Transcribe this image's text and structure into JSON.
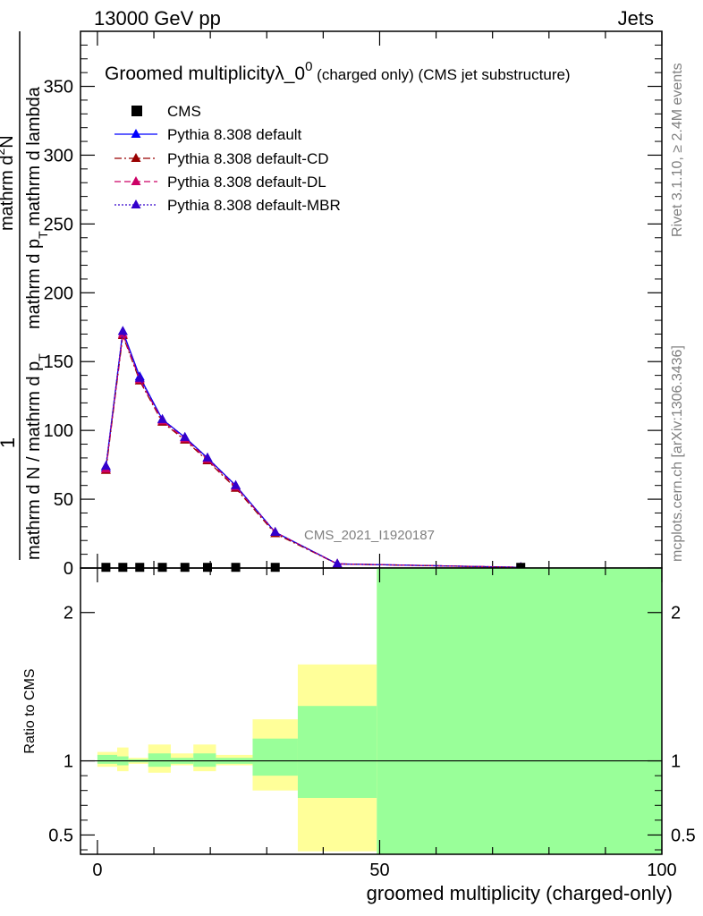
{
  "header": {
    "left": "13000 GeV pp",
    "right": "Jets"
  },
  "title": {
    "main": "Groomed multiplicityλ_0",
    "sup": "0",
    "rest": " (charged only) (CMS jet substructure)"
  },
  "side_labels": {
    "rivet": "Rivet 3.1.10, ≥ 2.4M events",
    "mcplots": "mcplots.cern.ch [arXiv:1306.3436]"
  },
  "watermark": "CMS_2021_I1920187",
  "ylabel_top": {
    "one": "1",
    "den": "mathrm d N / mathrm d p",
    "den_sub": "T",
    "num_a": "mathrm d",
    "num_sup": "2",
    "num_b": "N",
    "num_den_a": "mathrm d p",
    "num_den_sub": "T",
    "num_den_b": " mathrm d lambda"
  },
  "ylabel_ratio": "Ratio to CMS",
  "xlabel": "groomed multiplicity (charged-only)",
  "colors": {
    "default": "#0000ff",
    "cd": "#990000",
    "dl": "#cc0066",
    "mbr": "#3300cc",
    "band_yellow": "#ffff99",
    "band_green": "#99ff99"
  },
  "chart_data": [
    {
      "type": "line",
      "xlim": [
        -3,
        100
      ],
      "ylim": [
        0,
        390
      ],
      "x_ticks": [
        0,
        50,
        100
      ],
      "y_ticks": [
        0,
        50,
        100,
        150,
        200,
        250,
        300,
        350
      ],
      "legend_position": "top-left",
      "legend": [
        {
          "name": "CMS",
          "style": "square"
        },
        {
          "name": "Pythia 8.308 default",
          "style": "solid",
          "color": "#0000ff"
        },
        {
          "name": "Pythia 8.308 default-CD",
          "style": "dashdot",
          "color": "#990000"
        },
        {
          "name": "Pythia 8.308 default-DL",
          "style": "dashed",
          "color": "#cc0066"
        },
        {
          "name": "Pythia 8.308 default-MBR",
          "style": "dotted",
          "color": "#3300cc"
        }
      ],
      "cms": {
        "x": [
          1.5,
          4.5,
          7.5,
          11.5,
          15.5,
          19.5,
          24.5,
          31.5,
          75
        ],
        "y": [
          0.5,
          0.5,
          0.5,
          0.5,
          0.5,
          0.5,
          0.5,
          0.5,
          0.5
        ]
      },
      "series": [
        {
          "name": "Pythia 8.308 default",
          "color": "#0000ff",
          "x": [
            1.5,
            4.5,
            7.5,
            11.5,
            15.5,
            19.5,
            24.5,
            31.5,
            42.5,
            75
          ],
          "y": [
            73,
            172,
            139,
            108,
            95,
            80,
            60,
            26,
            3,
            0.5
          ]
        },
        {
          "name": "Pythia 8.308 default-CD",
          "color": "#990000",
          "x": [
            1.5,
            4.5,
            7.5,
            11.5,
            15.5,
            19.5,
            24.5,
            31.5,
            42.5,
            75
          ],
          "y": [
            71,
            169,
            136,
            106,
            93,
            78,
            58,
            25,
            3,
            0.5
          ]
        },
        {
          "name": "Pythia 8.308 default-DL",
          "color": "#cc0066",
          "x": [
            1.5,
            4.5,
            7.5,
            11.5,
            15.5,
            19.5,
            24.5,
            31.5,
            42.5,
            75
          ],
          "y": [
            72,
            170,
            137,
            107,
            94,
            79,
            59,
            26,
            3,
            0.5
          ]
        },
        {
          "name": "Pythia 8.308 default-MBR",
          "color": "#3300cc",
          "x": [
            1.5,
            4.5,
            7.5,
            11.5,
            15.5,
            19.5,
            24.5,
            31.5,
            42.5,
            75
          ],
          "y": [
            74,
            172,
            138,
            108,
            95,
            80,
            60,
            26,
            3,
            0.5
          ]
        }
      ]
    },
    {
      "type": "area",
      "xlim": [
        -3,
        100
      ],
      "ylim": [
        0.37,
        2.3
      ],
      "x_ticks": [
        0,
        50,
        100
      ],
      "y_ticks": [
        0.5,
        1,
        2
      ],
      "reference_line": 1,
      "bins": [
        {
          "x0": 0,
          "x1": 3.5,
          "yellow": [
            0.96,
            1.06
          ],
          "green": [
            0.98,
            1.04
          ]
        },
        {
          "x0": 3.5,
          "x1": 5.5,
          "yellow": [
            0.93,
            1.09
          ],
          "green": [
            0.97,
            1.03
          ]
        },
        {
          "x0": 5.5,
          "x1": 9,
          "yellow": [
            0.98,
            1.02
          ],
          "green": [
            0.99,
            1.01
          ]
        },
        {
          "x0": 9,
          "x1": 13,
          "yellow": [
            0.92,
            1.11
          ],
          "green": [
            0.96,
            1.05
          ]
        },
        {
          "x0": 13,
          "x1": 17,
          "yellow": [
            0.97,
            1.05
          ],
          "green": [
            0.98,
            1.02
          ]
        },
        {
          "x0": 17,
          "x1": 21,
          "yellow": [
            0.93,
            1.11
          ],
          "green": [
            0.96,
            1.05
          ]
        },
        {
          "x0": 21,
          "x1": 27.5,
          "yellow": [
            0.97,
            1.04
          ],
          "green": [
            0.98,
            1.02
          ]
        },
        {
          "x0": 27.5,
          "x1": 35.5,
          "yellow": [
            0.8,
            1.28
          ],
          "green": [
            0.9,
            1.15
          ]
        },
        {
          "x0": 35.5,
          "x1": 49.5,
          "yellow": [
            0.39,
            1.65
          ],
          "green": [
            0.75,
            1.37
          ]
        },
        {
          "x0": 49.5,
          "x1": 100,
          "yellow": [
            0.37,
            2.3
          ],
          "green": [
            0.37,
            2.3
          ]
        }
      ]
    }
  ]
}
